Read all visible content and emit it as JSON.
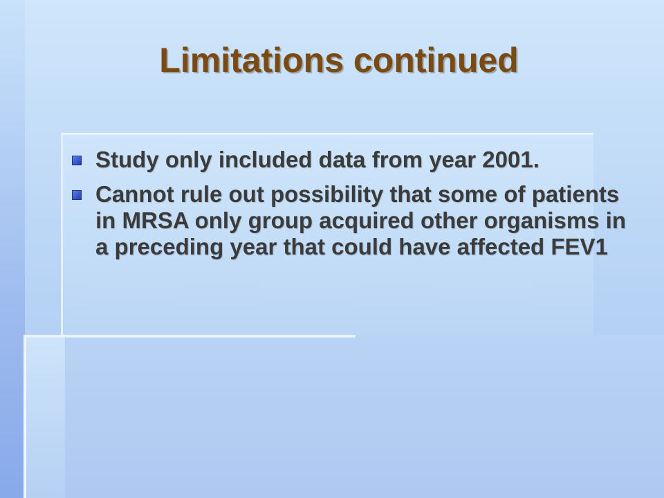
{
  "slide": {
    "title": "Limitations continued",
    "bullets": [
      "Study only included data from year 2001.",
      "Cannot rule out possibility that some of patients in MRSA only group acquired other organisms in a preceding year that could have affected FEV1"
    ]
  },
  "colors": {
    "title": "#7a4a12",
    "body_text": "#3b3b3b",
    "bullet_marker": "#1f3fb4",
    "background": "#bcd7f6"
  },
  "icons": {
    "bullet": "square-bullet-icon"
  }
}
